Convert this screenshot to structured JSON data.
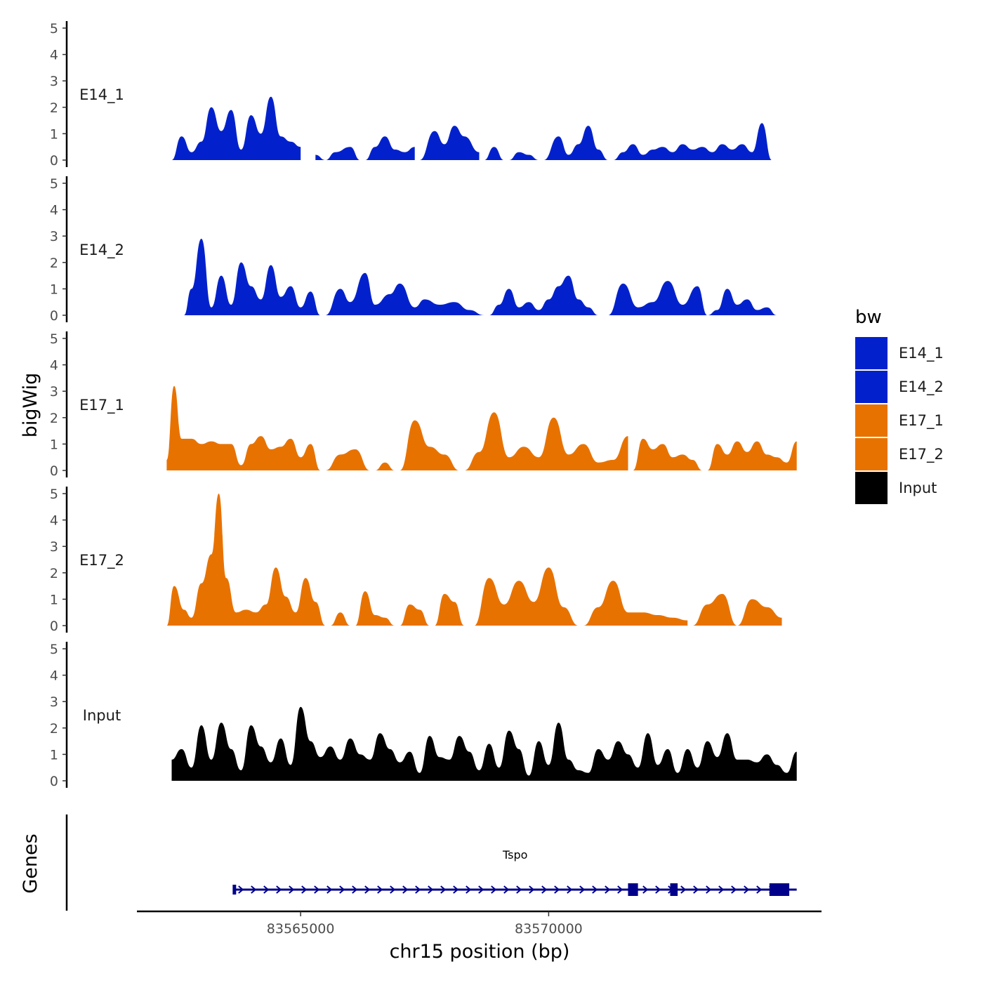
{
  "chart_data": {
    "type": "area",
    "title": "",
    "xlabel": "chr15 position (bp)",
    "ylabel": "bigWig",
    "genes_label": "Genes",
    "xlim": [
      83561700,
      83575500
    ],
    "x_ticks": [
      {
        "value": 83565000,
        "label": "83565000"
      },
      {
        "value": 83570000,
        "label": "83570000"
      }
    ],
    "ylim": [
      0,
      5
    ],
    "y_ticks": [
      "0",
      "1",
      "2",
      "3",
      "4",
      "5"
    ],
    "legend": {
      "title": "bw",
      "position": "right",
      "entries": [
        {
          "label": "E14_1",
          "color": "#0221CC"
        },
        {
          "label": "E14_2",
          "color": "#0221CC"
        },
        {
          "label": "E17_1",
          "color": "#E87200"
        },
        {
          "label": "E17_2",
          "color": "#E87200"
        },
        {
          "label": "Input",
          "color": "#000000"
        }
      ]
    },
    "tracks": [
      {
        "name": "E14_1",
        "color": "#0221CC",
        "segments": [
          {
            "x": [
              83562400,
              83562600,
              83562800,
              83563000,
              83563200,
              83563400,
              83563600,
              83563800,
              83564000,
              83564200,
              83564400,
              83564600,
              83564800,
              83565000
            ],
            "y": [
              0.0,
              0.9,
              0.3,
              0.7,
              2.0,
              1.1,
              1.9,
              0.4,
              1.7,
              1.0,
              2.4,
              0.9,
              0.7,
              0.5
            ]
          },
          {
            "x": [
              83565300,
              83565500,
              83565700,
              83566000,
              83566200
            ],
            "y": [
              0.2,
              0.0,
              0.3,
              0.5,
              0.0
            ]
          },
          {
            "x": [
              83566300,
              83566500,
              83566700,
              83566900,
              83567100,
              83567300
            ],
            "y": [
              0.0,
              0.5,
              0.9,
              0.4,
              0.3,
              0.5
            ]
          },
          {
            "x": [
              83567400,
              83567700,
              83567900,
              83568100,
              83568300,
              83568600
            ],
            "y": [
              0.0,
              1.1,
              0.6,
              1.3,
              0.9,
              0.3
            ]
          },
          {
            "x": [
              83568700,
              83568900,
              83569100
            ],
            "y": [
              0.0,
              0.5,
              0.0
            ]
          },
          {
            "x": [
              83569200,
              83569400,
              83569600,
              83569800
            ],
            "y": [
              0.0,
              0.3,
              0.2,
              0.0
            ]
          },
          {
            "x": [
              83569900,
              83570200,
              83570400,
              83570600,
              83570800,
              83571000,
              83571200
            ],
            "y": [
              0.0,
              0.9,
              0.2,
              0.6,
              1.3,
              0.4,
              0.0
            ]
          },
          {
            "x": [
              83571300,
              83571500,
              83571700,
              83571900,
              83572100,
              83572300,
              83572500,
              83572700,
              83572900,
              83573100,
              83573300,
              83573500,
              83573700,
              83573900,
              83574100,
              83574300,
              83574500
            ],
            "y": [
              0.0,
              0.3,
              0.6,
              0.2,
              0.4,
              0.5,
              0.3,
              0.6,
              0.4,
              0.5,
              0.3,
              0.6,
              0.4,
              0.6,
              0.3,
              1.4,
              0.0
            ]
          }
        ]
      },
      {
        "name": "E14_2",
        "color": "#0221CC",
        "segments": [
          {
            "x": [
              83562650,
              83562800,
              83563000,
              83563200,
              83563400,
              83563600,
              83563800,
              83564000,
              83564200,
              83564400,
              83564600,
              83564800,
              83565000,
              83565200,
              83565400
            ],
            "y": [
              0.0,
              1.0,
              2.9,
              0.3,
              1.5,
              0.4,
              2.0,
              1.1,
              0.6,
              1.9,
              0.7,
              1.1,
              0.3,
              0.9,
              0.0
            ]
          },
          {
            "x": [
              83565500,
              83565800,
              83566000,
              83566300,
              83566500,
              83566800,
              83567000,
              83567300,
              83567500,
              83567800,
              83568100,
              83568400,
              83568700
            ],
            "y": [
              0.0,
              1.0,
              0.5,
              1.6,
              0.4,
              0.8,
              1.2,
              0.3,
              0.6,
              0.4,
              0.5,
              0.2,
              0.0
            ]
          },
          {
            "x": [
              83568800,
              83569000,
              83569200,
              83569400,
              83569600,
              83569800,
              83570000,
              83570200,
              83570400,
              83570600,
              83570800,
              83571000
            ],
            "y": [
              0.0,
              0.4,
              1.0,
              0.3,
              0.5,
              0.2,
              0.6,
              1.1,
              1.5,
              0.6,
              0.3,
              0.0
            ]
          },
          {
            "x": [
              83571200,
              83571500,
              83571800,
              83572100,
              83572400,
              83572700,
              83573000,
              83573200,
              83573400,
              83573600,
              83573800,
              83574000,
              83574200,
              83574400,
              83574600
            ],
            "y": [
              0.0,
              1.2,
              0.3,
              0.5,
              1.3,
              0.4,
              1.1,
              0.0,
              0.2,
              1.0,
              0.4,
              0.6,
              0.2,
              0.3,
              0.0
            ]
          }
        ]
      },
      {
        "name": "E17_1",
        "color": "#E87200",
        "segments": [
          {
            "x": [
              83562300,
              83562450,
              83562600,
              83562800,
              83563000,
              83563200,
              83563400,
              83563600,
              83563800,
              83564000,
              83564200,
              83564400,
              83564600,
              83564800,
              83565000,
              83565200,
              83565400
            ],
            "y": [
              0.4,
              3.2,
              1.2,
              1.2,
              1.0,
              1.1,
              1.0,
              1.0,
              0.2,
              1.0,
              1.3,
              0.8,
              0.9,
              1.2,
              0.5,
              1.0,
              0.0
            ]
          },
          {
            "x": [
              83565500,
              83565800,
              83566100,
              83566400
            ],
            "y": [
              0.0,
              0.6,
              0.8,
              0.0
            ]
          },
          {
            "x": [
              83566500,
              83566700,
              83566900
            ],
            "y": [
              0.0,
              0.3,
              0.0
            ]
          },
          {
            "x": [
              83567000,
              83567300,
              83567600,
              83567900,
              83568200
            ],
            "y": [
              0.0,
              1.9,
              0.9,
              0.6,
              0.0
            ]
          },
          {
            "x": [
              83568300,
              83568600,
              83568900,
              83569200,
              83569500,
              83569800,
              83570100,
              83570400,
              83570700,
              83571000,
              83571300,
              83571600
            ],
            "y": [
              0.0,
              0.7,
              2.2,
              0.5,
              0.9,
              0.5,
              2.0,
              0.6,
              1.0,
              0.3,
              0.4,
              1.3
            ]
          },
          {
            "x": [
              83571700,
              83571900,
              83572100,
              83572300,
              83572500,
              83572700,
              83572900,
              83573100
            ],
            "y": [
              0.0,
              1.2,
              0.8,
              1.0,
              0.5,
              0.6,
              0.4,
              0.0
            ]
          },
          {
            "x": [
              83573200,
              83573400,
              83573600,
              83573800,
              83574000,
              83574200,
              83574400,
              83574600,
              83574800,
              83575000
            ],
            "y": [
              0.0,
              1.0,
              0.6,
              1.1,
              0.7,
              1.1,
              0.6,
              0.5,
              0.3,
              1.1
            ]
          }
        ]
      },
      {
        "name": "E17_2",
        "color": "#E87200",
        "segments": [
          {
            "x": [
              83562300,
              83562450,
              83562650,
              83562800,
              83563000,
              83563200,
              83563350,
              83563500,
              83563700,
              83563900,
              83564100,
              83564300,
              83564500,
              83564700,
              83564900,
              83565100,
              83565300,
              83565500
            ],
            "y": [
              0.0,
              1.5,
              0.6,
              0.3,
              1.6,
              2.7,
              5.0,
              1.8,
              0.5,
              0.6,
              0.5,
              0.8,
              2.2,
              1.1,
              0.5,
              1.8,
              0.9,
              0.0
            ]
          },
          {
            "x": [
              83565600,
              83565800,
              83566000
            ],
            "y": [
              0.0,
              0.5,
              0.0
            ]
          },
          {
            "x": [
              83566100,
              83566300,
              83566500,
              83566700,
              83566900
            ],
            "y": [
              0.0,
              1.3,
              0.4,
              0.3,
              0.0
            ]
          },
          {
            "x": [
              83567000,
              83567200,
              83567400,
              83567600
            ],
            "y": [
              0.0,
              0.8,
              0.6,
              0.0
            ]
          },
          {
            "x": [
              83567700,
              83567900,
              83568100,
              83568300
            ],
            "y": [
              0.0,
              1.2,
              0.9,
              0.0
            ]
          },
          {
            "x": [
              83568500,
              83568800,
              83569100,
              83569400,
              83569700,
              83570000,
              83570300,
              83570600
            ],
            "y": [
              0.0,
              1.8,
              0.8,
              1.7,
              0.9,
              2.2,
              0.7,
              0.0
            ]
          },
          {
            "x": [
              83570700,
              83571000,
              83571300,
              83571600,
              83571900,
              83572200,
              83572500,
              83572800
            ],
            "y": [
              0.0,
              0.7,
              1.7,
              0.5,
              0.5,
              0.4,
              0.3,
              0.2
            ]
          },
          {
            "x": [
              83572900,
              83573200,
              83573500,
              83573800,
              83574100,
              83574400,
              83574700
            ],
            "y": [
              0.0,
              0.8,
              1.2,
              0.0,
              1.0,
              0.7,
              0.3
            ]
          }
        ]
      },
      {
        "name": "Input",
        "color": "#000000",
        "segments": [
          {
            "x": [
              83562400,
              83562600,
              83562800,
              83563000,
              83563200,
              83563400,
              83563600,
              83563800,
              83564000,
              83564200,
              83564400,
              83564600,
              83564800,
              83565000,
              83565200,
              83565400,
              83565600,
              83565800,
              83566000,
              83566200,
              83566400,
              83566600,
              83566800,
              83567000,
              83567200,
              83567400,
              83567600,
              83567800,
              83568000,
              83568200,
              83568400,
              83568600,
              83568800,
              83569000,
              83569200,
              83569400,
              83569600,
              83569800,
              83570000,
              83570200,
              83570400,
              83570600,
              83570800,
              83571000,
              83571200,
              83571400,
              83571600,
              83571800,
              83572000,
              83572200,
              83572400,
              83572600,
              83572800,
              83573000,
              83573200,
              83573400,
              83573600,
              83573800,
              83574000,
              83574200,
              83574400,
              83574600,
              83574800,
              83575000
            ],
            "y": [
              0.8,
              1.2,
              0.5,
              2.1,
              0.8,
              2.2,
              1.2,
              0.4,
              2.1,
              1.3,
              0.7,
              1.6,
              0.6,
              2.8,
              1.5,
              0.9,
              1.3,
              0.8,
              1.6,
              1.0,
              0.8,
              1.8,
              1.2,
              0.7,
              1.1,
              0.3,
              1.7,
              0.9,
              0.8,
              1.7,
              1.1,
              0.4,
              1.4,
              0.5,
              1.9,
              1.2,
              0.2,
              1.5,
              0.6,
              2.2,
              0.8,
              0.4,
              0.3,
              1.2,
              0.8,
              1.5,
              1.0,
              0.5,
              1.8,
              0.6,
              1.2,
              0.3,
              1.2,
              0.5,
              1.5,
              0.9,
              1.8,
              0.8,
              0.8,
              0.7,
              1.0,
              0.6,
              0.3,
              1.1
            ]
          }
        ]
      }
    ],
    "gene": {
      "name": "Tspo",
      "strand": "+",
      "start": 83563650,
      "end": 83575000,
      "exons": [
        [
          83563630,
          83563700
        ],
        [
          83571600,
          83571800
        ],
        [
          83572450,
          83572600
        ],
        [
          83574450,
          83574850
        ]
      ]
    }
  }
}
